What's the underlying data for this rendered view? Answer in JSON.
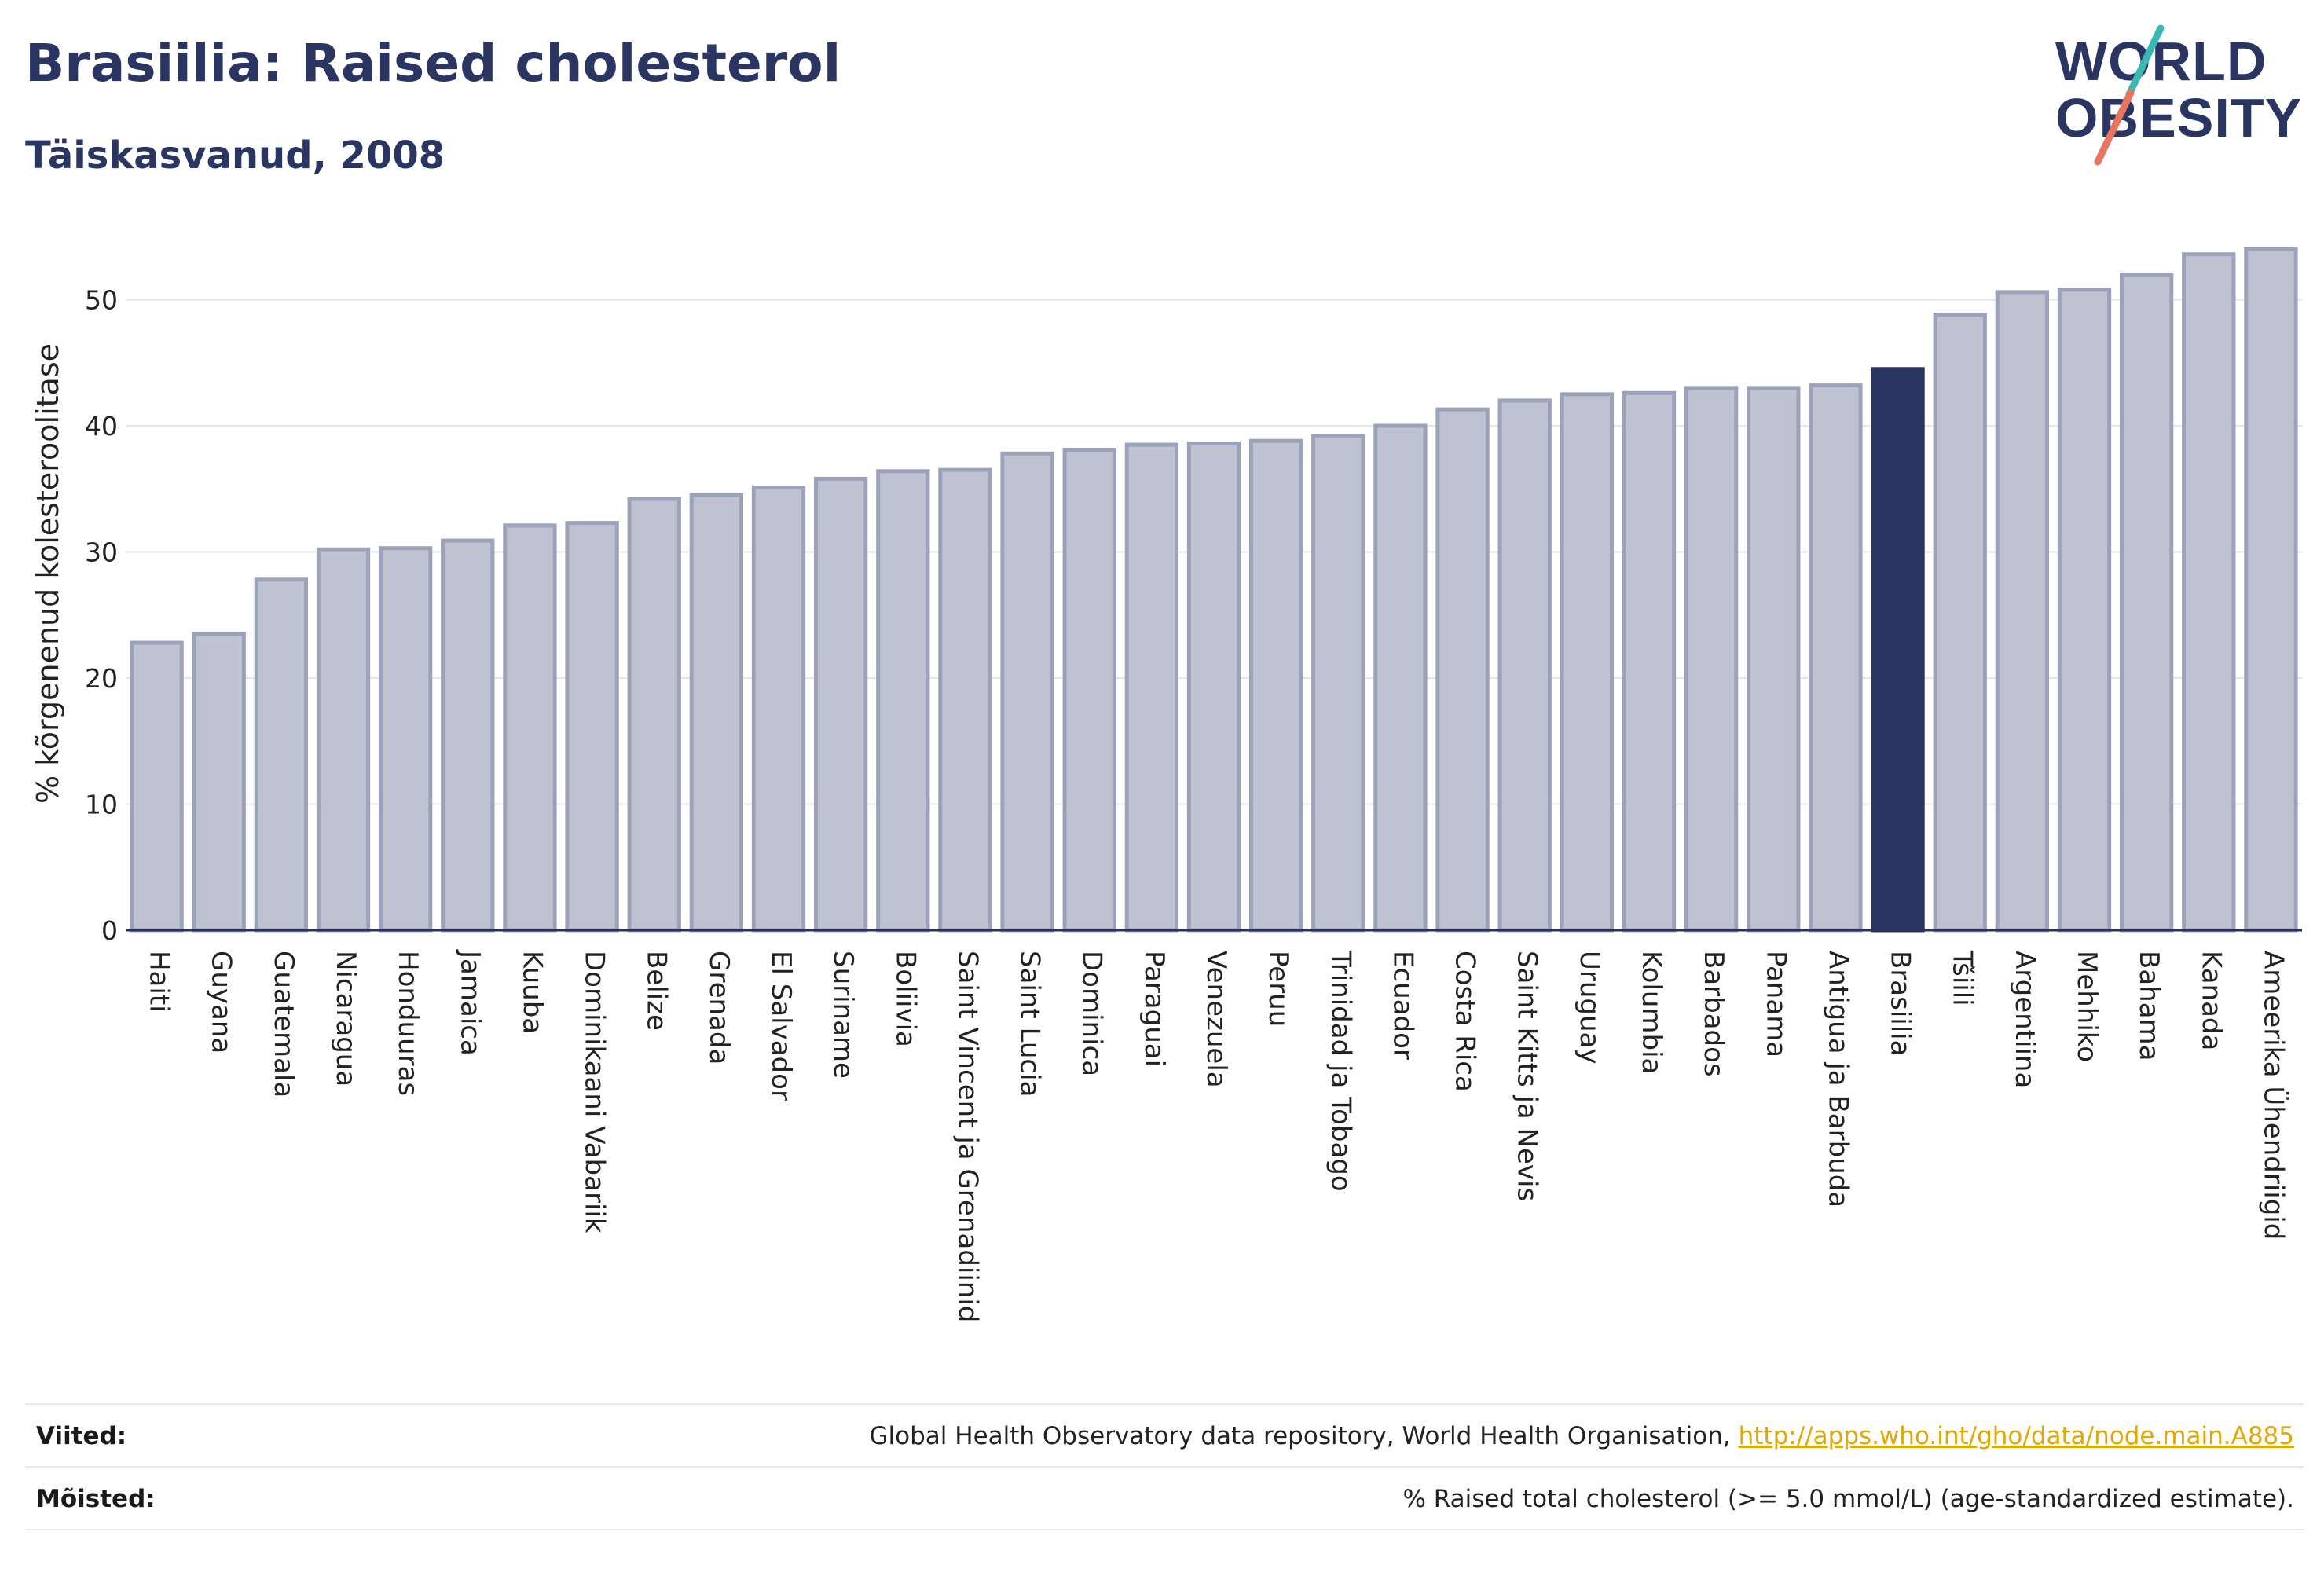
{
  "header": {
    "title": "Brasiilia: Raised cholesterol",
    "subtitle": "Täiskasvanud, 2008"
  },
  "logo": {
    "line1": "WORLD",
    "line2": "OBESITY"
  },
  "colors": {
    "bar_default_fill": "#bfc3d1",
    "bar_default_stroke": "#9ca2ba",
    "bar_highlight": "#2a3562",
    "gridline": "#e4e6ec",
    "axis": "#2a3360",
    "logo_navy": "#2a3562",
    "logo_teal": "#3bb8b4",
    "logo_coral": "#e8755f",
    "link": "#e0a800"
  },
  "chart_data": {
    "type": "bar",
    "ylabel": "% kõrgenenud kolesteroolitase",
    "ylim": [
      0,
      56
    ],
    "yticks": [
      0,
      10,
      20,
      30,
      40,
      50
    ],
    "grid": true,
    "highlight": "Brasiilia",
    "categories": [
      "Haiti",
      "Guyana",
      "Guatemala",
      "Nicaragua",
      "Honduuras",
      "Jamaica",
      "Kuuba",
      "Dominikaani Vabariik",
      "Belize",
      "Grenada",
      "El Salvador",
      "Suriname",
      "Boliivia",
      "Saint Vincent ja Grenadiinid",
      "Saint Lucia",
      "Dominica",
      "Paraguai",
      "Venezuela",
      "Peruu",
      "Trinidad ja Tobago",
      "Ecuador",
      "Costa Rica",
      "Saint Kitts ja Nevis",
      "Uruguay",
      "Kolumbia",
      "Barbados",
      "Panama",
      "Antigua ja Barbuda",
      "Brasiilia",
      "Tšiili",
      "Argentiina",
      "Mehhiko",
      "Bahama",
      "Kanada",
      "Ameerika Ühendriigid"
    ],
    "values": [
      22.8,
      23.5,
      27.8,
      30.2,
      30.3,
      30.9,
      32.1,
      32.3,
      34.2,
      34.5,
      35.1,
      35.8,
      36.4,
      36.5,
      37.8,
      38.1,
      38.5,
      38.6,
      38.8,
      39.2,
      40.0,
      41.3,
      42.0,
      42.5,
      42.6,
      43.0,
      43.0,
      43.2,
      44.5,
      48.8,
      50.6,
      50.8,
      52.0,
      53.6,
      54.0
    ]
  },
  "footer": {
    "sources_label": "Viited:",
    "sources_text": "Global Health Observatory data repository, World Health Organisation, ",
    "sources_link": "http://apps.who.int/gho/data/node.main.A885",
    "definitions_label": "Mõisted:",
    "definitions_text": "% Raised total cholesterol (>= 5.0 mmol/L) (age-standardized estimate)."
  }
}
